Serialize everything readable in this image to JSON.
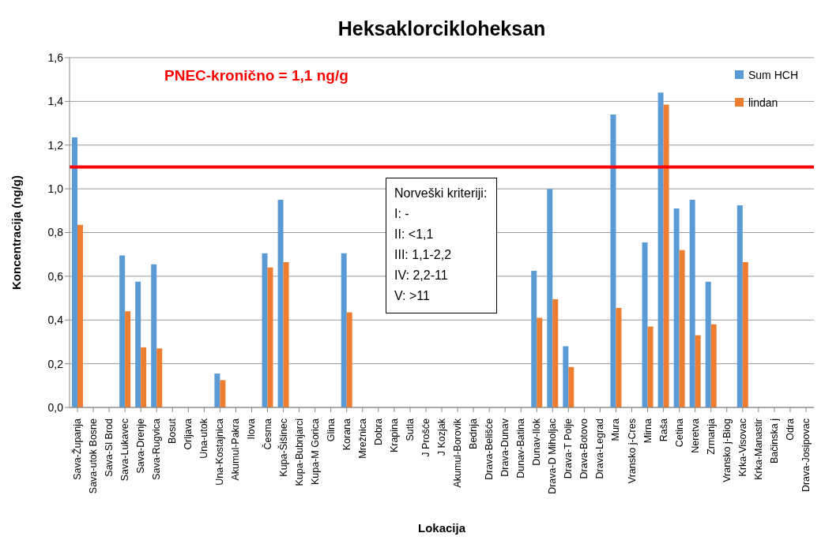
{
  "chart_data": {
    "type": "bar",
    "title": "Heksaklorcikloheksan",
    "xlabel": "Lokacija",
    "ylabel": "Koncentracija  (ng/g)",
    "categories": [
      "Sava-Županja",
      "Sava-utok Bosne",
      "Sava-Sl Brod",
      "Sava-Lukavec",
      "Sava-Drenje",
      "Sava-Rugvica",
      "Bosut",
      "Orljava",
      "Una-utok",
      "Una-Kostajnica",
      "Akumul-Pakra",
      "Ilova",
      "Česma",
      "Kupa-Šišinec",
      "Kupa-Bubnjarci",
      "Kupa-M Gorica",
      "Glina",
      "Korana",
      "Mrežnica",
      "Dobra",
      "Krapina",
      "Sutla",
      "J Prošće",
      "J Kozjak",
      "Akumul-Borovik",
      "Bednja",
      "Drava-Belišće",
      "Drava-Dunav",
      "Dunav-Batina",
      "Dunav-Ilok",
      "Drava-D Miholjac",
      "Drava-T Polje",
      "Drava-Botovo",
      "Drava-Legrad",
      "Mura",
      "Vransko j-Cres",
      "Mirna",
      "Raša",
      "Cetina",
      "Neretva",
      "Zrmanja",
      "Vransko j-Biog",
      "Krka-Visovac",
      "Krka-Manastir",
      "Bačinska j",
      "Odra",
      "Drava-Josipovac"
    ],
    "series": [
      {
        "name": "Sum HCH",
        "color": "#5b9bd5",
        "values": [
          1.235,
          null,
          null,
          0.695,
          0.575,
          0.655,
          null,
          null,
          null,
          0.155,
          null,
          null,
          0.705,
          0.95,
          null,
          null,
          null,
          0.705,
          null,
          null,
          null,
          null,
          null,
          null,
          null,
          null,
          null,
          null,
          null,
          0.625,
          1.0,
          0.28,
          null,
          null,
          1.34,
          null,
          0.755,
          1.44,
          0.91,
          0.95,
          0.575,
          null,
          0.925,
          null,
          null,
          null,
          null
        ]
      },
      {
        "name": "lindan",
        "color": "#ed7d31",
        "values": [
          0.835,
          null,
          null,
          0.44,
          0.275,
          0.27,
          null,
          null,
          null,
          0.125,
          null,
          null,
          0.64,
          0.665,
          null,
          null,
          null,
          0.435,
          null,
          null,
          null,
          null,
          null,
          null,
          null,
          null,
          null,
          null,
          null,
          0.41,
          0.495,
          0.185,
          null,
          null,
          0.455,
          null,
          0.37,
          1.385,
          0.72,
          0.33,
          0.38,
          null,
          0.665,
          null,
          null,
          null,
          null
        ]
      }
    ],
    "ylim": [
      0,
      1.6
    ],
    "yticks": [
      {
        "value": 0,
        "label": "0,0"
      },
      {
        "value": 0.2,
        "label": "0,2"
      },
      {
        "value": 0.4,
        "label": "0,4"
      },
      {
        "value": 0.6,
        "label": "0,6"
      },
      {
        "value": 0.8,
        "label": "0,8"
      },
      {
        "value": 1,
        "label": "1,0"
      },
      {
        "value": 1.2,
        "label": "1,2"
      },
      {
        "value": 1.4,
        "label": "1,4"
      },
      {
        "value": 1.6,
        "label": "1,6"
      }
    ],
    "ref_lines": [
      {
        "axis": "y",
        "value": 1.1,
        "label": "PNEC-kronično = 1,1 ng/g",
        "color": "#ff0000"
      }
    ],
    "annotations": [
      "Norveški kriteriji:\nI: -\nII: <1,1\nIII: 1,1-2,2\nIV: 2,2-11\nV: >11"
    ],
    "grid": "y",
    "legend": "top right"
  }
}
